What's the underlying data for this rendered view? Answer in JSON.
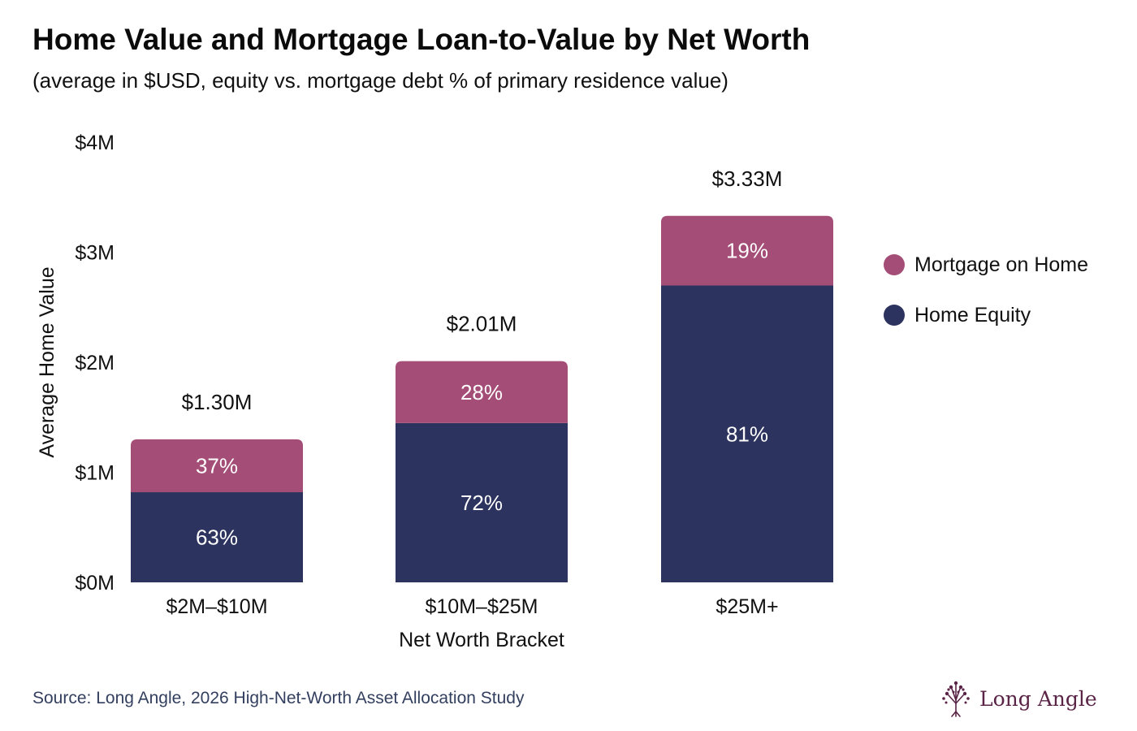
{
  "title": "Home Value and Mortgage Loan-to-Value by Net Worth",
  "subtitle": "(average in $USD, equity vs. mortgage debt % of primary residence value)",
  "source": "Source: Long Angle, 2026 High-Net-Worth Asset Allocation Study",
  "logo_text": "Long Angle",
  "logo_icon": "tree-icon",
  "colors": {
    "mortgage": "#a44d77",
    "equity": "#2c335e",
    "logo": "#5a2446",
    "source": "#333f5e"
  },
  "chart_data": {
    "type": "bar",
    "stacked": true,
    "title": "Home Value and Mortgage Loan-to-Value by Net Worth",
    "subtitle": "(average in $USD, equity vs. mortgage debt % of primary residence value)",
    "xlabel": "Net Worth Bracket",
    "ylabel": "Average Home Value",
    "ylim": [
      0,
      4000000
    ],
    "yticks": [
      0,
      1000000,
      2000000,
      3000000,
      4000000
    ],
    "ytick_labels": [
      "$0M",
      "$1M",
      "$2M",
      "$3M",
      "$4M"
    ],
    "grid": false,
    "legend_position": "right",
    "categories": [
      "$2M–$10M",
      "$10M–$25M",
      "$25M+"
    ],
    "totals": [
      1300000,
      2010000,
      3330000
    ],
    "total_labels": [
      "$1.30M",
      "$2.01M",
      "$3.33M"
    ],
    "series": [
      {
        "name": "Home Equity",
        "color": "#2c335e",
        "percent": [
          63,
          72,
          81
        ],
        "labels": [
          "63%",
          "72%",
          "81%"
        ]
      },
      {
        "name": "Mortgage on Home",
        "color": "#a44d77",
        "percent": [
          37,
          28,
          19
        ],
        "labels": [
          "37%",
          "28%",
          "19%"
        ]
      }
    ],
    "legend_order": [
      "Mortgage on Home",
      "Home Equity"
    ]
  }
}
